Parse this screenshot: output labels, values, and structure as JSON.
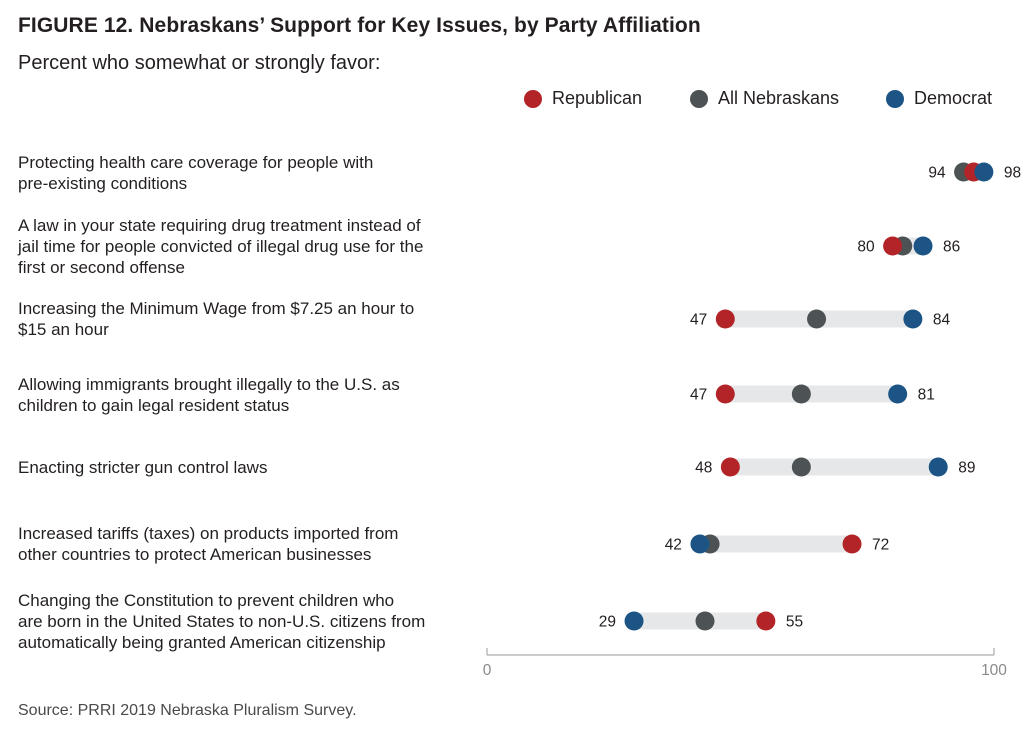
{
  "title": "FIGURE 12. Nebraskans’ Support for Key Issues, by Party Affiliation",
  "subtitle": "Percent who somewhat or strongly favor:",
  "source": "Source: PRRI 2019 Nebraska Pluralism Survey.",
  "legend": [
    {
      "name": "Republican",
      "color": "#b22427"
    },
    {
      "name": "All Nebraskans",
      "color": "#4d5254"
    },
    {
      "name": "Democrat",
      "color": "#1c5585"
    }
  ],
  "chart_data": {
    "type": "dot-range",
    "title": "FIGURE 12. Nebraskans’ Support for Key Issues, by Party Affiliation",
    "subtitle": "Percent who somewhat or strongly favor:",
    "xlim": [
      0,
      100
    ],
    "x_ticks": [
      "0",
      "100"
    ],
    "grid": false,
    "legend_position": "top-right",
    "series_names": [
      "Republican",
      "All Nebraskans",
      "Democrat"
    ],
    "categories": [
      "Protecting health care coverage for people with pre-existing conditions",
      "A law in your state requiring drug treatment instead of jail time for people convicted of illegal drug use for the first or second offense",
      "Increasing the Minimum Wage from $7.25 an hour to $15 an hour",
      "Allowing immigrants brought illegally to the U.S. as children to gain legal resident status",
      "Enacting stricter gun control laws",
      "Increased tariffs (taxes) on products imported from other countries to protect American businesses",
      "Changing the Constitution to prevent children who are born in the United States to non-U.S. citizens from automatically being granted American citizenship"
    ],
    "rows": [
      {
        "label_lines": [
          "Protecting health care coverage for people with",
          "pre-existing conditions"
        ],
        "republican": 96,
        "all": 94,
        "democrat": 98,
        "low_label": "94",
        "high_label": "98"
      },
      {
        "label_lines": [
          "A law in your state requiring drug treatment instead of",
          "jail time for people convicted of illegal drug use for the",
          "first or second offense"
        ],
        "republican": 80,
        "all": 82,
        "democrat": 86,
        "low_label": "80",
        "high_label": "86"
      },
      {
        "label_lines": [
          "Increasing the Minimum Wage from $7.25 an hour to",
          "$15 an hour"
        ],
        "republican": 47,
        "all": 65,
        "democrat": 84,
        "low_label": "47",
        "high_label": "84"
      },
      {
        "label_lines": [
          "Allowing immigrants brought illegally to the U.S. as",
          "children to gain legal resident status"
        ],
        "republican": 47,
        "all": 62,
        "democrat": 81,
        "low_label": "47",
        "high_label": "81"
      },
      {
        "label_lines": [
          "Enacting stricter gun control laws"
        ],
        "republican": 48,
        "all": 62,
        "democrat": 89,
        "low_label": "48",
        "high_label": "89"
      },
      {
        "label_lines": [
          "Increased tariffs (taxes) on products imported from",
          "other countries to protect American businesses"
        ],
        "republican": 72,
        "all": 44,
        "democrat": 42,
        "low_label": "42",
        "high_label": "72"
      },
      {
        "label_lines": [
          "Changing the Constitution to prevent children who",
          "are born in the United States to non-U.S. citizens from",
          "automatically being granted American citizenship"
        ],
        "republican": 55,
        "all": 43,
        "democrat": 29,
        "low_label": "29",
        "high_label": "55"
      }
    ]
  }
}
